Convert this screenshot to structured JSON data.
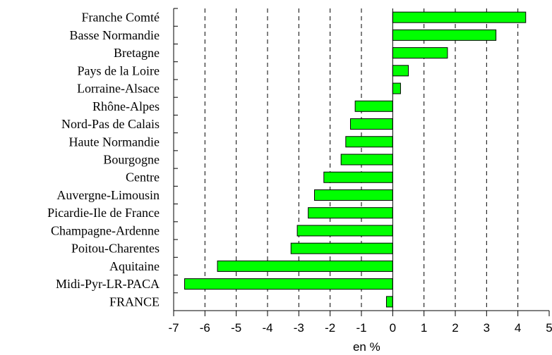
{
  "chart_data": {
    "type": "bar",
    "orientation": "horizontal",
    "categories": [
      "Franche Comté",
      "Basse Normandie",
      "Bretagne",
      "Pays de la Loire",
      "Lorraine-Alsace",
      "Rhône-Alpes",
      "Nord-Pas de Calais",
      "Haute Normandie",
      "Bourgogne",
      "Centre",
      "Auvergne-Limousin",
      "Picardie-Ile de France",
      "Champagne-Ardenne",
      "Poitou-Charentes",
      "Aquitaine",
      "Midi-Pyr-LR-PACA",
      "FRANCE"
    ],
    "values": [
      4.25,
      3.3,
      1.75,
      0.5,
      0.25,
      -1.2,
      -1.35,
      -1.5,
      -1.65,
      -2.2,
      -2.5,
      -2.7,
      -3.05,
      -3.25,
      -5.6,
      -6.65,
      -0.2
    ],
    "xlabel": "en %",
    "ylabel": "",
    "title": "",
    "xlim": [
      -7,
      5
    ],
    "xticks": [
      -7,
      -6,
      -5,
      -4,
      -3,
      -2,
      -1,
      0,
      1,
      2,
      3,
      4,
      5
    ],
    "grid": "vertical dashed",
    "colors": {
      "bar_fill": "#00ff00",
      "bar_stroke": "#000000",
      "grid": "#000000"
    }
  }
}
